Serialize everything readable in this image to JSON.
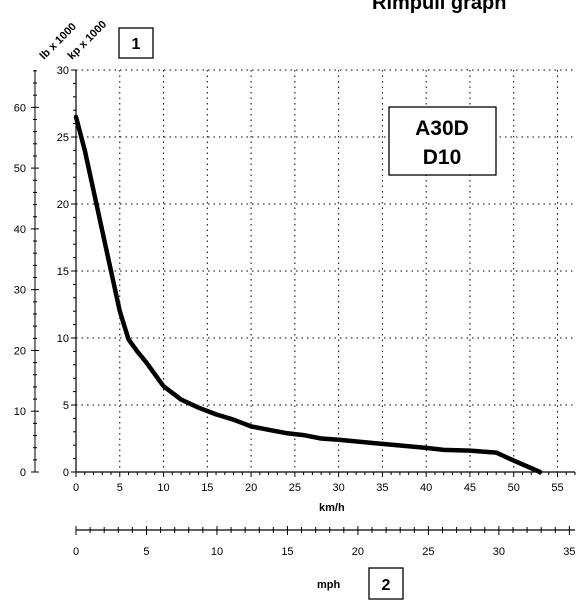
{
  "chart_data": {
    "type": "line",
    "title": "Rimpull graph",
    "model_lines": [
      "A30D",
      "D10"
    ],
    "callouts": [
      "1",
      "2"
    ],
    "grid": true,
    "y_axes": [
      {
        "label": "kp x 1000",
        "ticks": [
          "0",
          "5",
          "10",
          "15",
          "20",
          "25",
          "30"
        ],
        "range": [
          0,
          30
        ]
      },
      {
        "label": "lb x 1000",
        "ticks": [
          "0",
          "10",
          "20",
          "30",
          "40",
          "50",
          "60"
        ],
        "range": [
          0,
          66.14
        ]
      }
    ],
    "x_axes": [
      {
        "label": "km/h",
        "ticks": [
          "0",
          "5",
          "10",
          "15",
          "20",
          "25",
          "30",
          "35",
          "40",
          "45",
          "50",
          "55"
        ],
        "range": [
          0,
          57
        ]
      },
      {
        "label": "mph",
        "ticks": [
          "0",
          "5",
          "10",
          "15",
          "20",
          "25",
          "30",
          "35"
        ],
        "range": [
          0,
          35.4
        ]
      }
    ],
    "series": [
      {
        "x": [
          0,
          1,
          2.5,
          4,
          5,
          6,
          7,
          8,
          9,
          10,
          12,
          14,
          16,
          18,
          20,
          22,
          24,
          26,
          28,
          30,
          35,
          40,
          42,
          45,
          48,
          50,
          53
        ],
        "y": [
          26.5,
          24,
          19.5,
          15,
          12,
          9.9,
          9,
          8.2,
          7.3,
          6.4,
          5.4,
          4.8,
          4.3,
          3.9,
          3.4,
          3.15,
          2.9,
          2.75,
          2.5,
          2.4,
          2.1,
          1.8,
          1.65,
          1.6,
          1.45,
          0.85,
          0
        ]
      }
    ]
  }
}
